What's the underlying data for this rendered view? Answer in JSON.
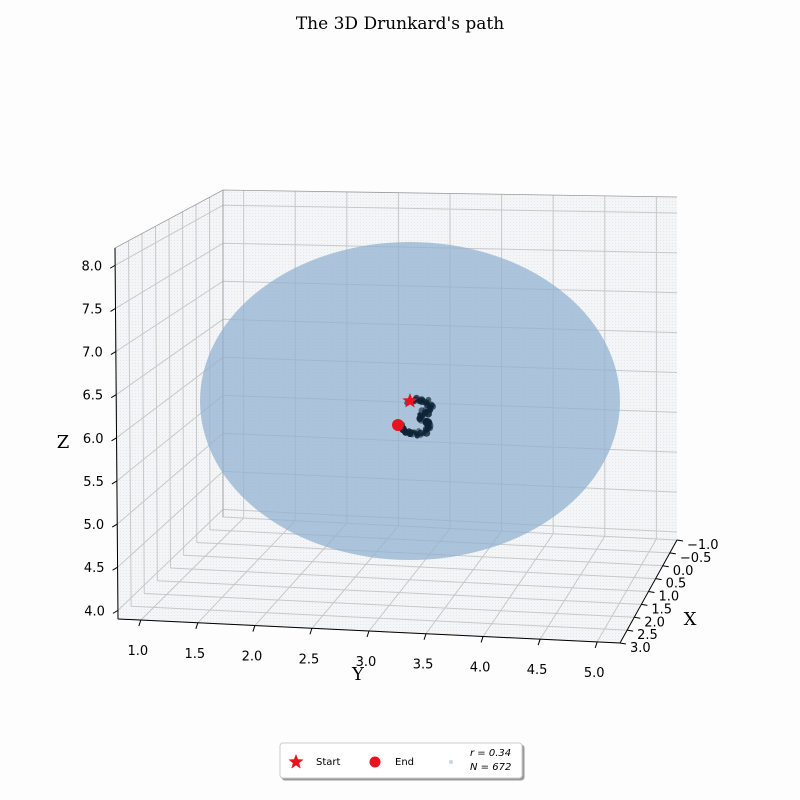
{
  "chart_data": {
    "type": "scatter",
    "projection": "3d",
    "title": "The 3D Drunkard's path",
    "xlabel": "X",
    "ylabel": "Y",
    "zlabel": "Z",
    "x_ticks": [
      "−1.0",
      "−0.5",
      "0.0",
      "0.5",
      "1.0",
      "1.5",
      "2.0",
      "2.5",
      "3.0"
    ],
    "y_ticks": [
      "1.0",
      "1.5",
      "2.0",
      "2.5",
      "3.0",
      "3.5",
      "4.0",
      "4.5",
      "5.0"
    ],
    "z_ticks": [
      "4.0",
      "4.5",
      "5.0",
      "5.5",
      "6.0",
      "6.5",
      "7.0",
      "7.5",
      "8.0"
    ],
    "xlim": [
      -1.0,
      3.0
    ],
    "ylim": [
      0.8,
      5.2
    ],
    "zlim": [
      3.9,
      8.2
    ],
    "grid": true,
    "sphere_color": "#8fb2d0",
    "start": {
      "label": "Start",
      "color": "#e8131f",
      "marker": "star"
    },
    "end": {
      "label": "End",
      "color": "#e8131f",
      "marker": "circle"
    },
    "path_color": "#0d2436",
    "legend": {
      "placement": "bottom-center",
      "entries": [
        "Start",
        "End"
      ],
      "stats_r": "r = 0.34",
      "stats_n": "N = 672",
      "stats_n_sub": "l"
    }
  }
}
